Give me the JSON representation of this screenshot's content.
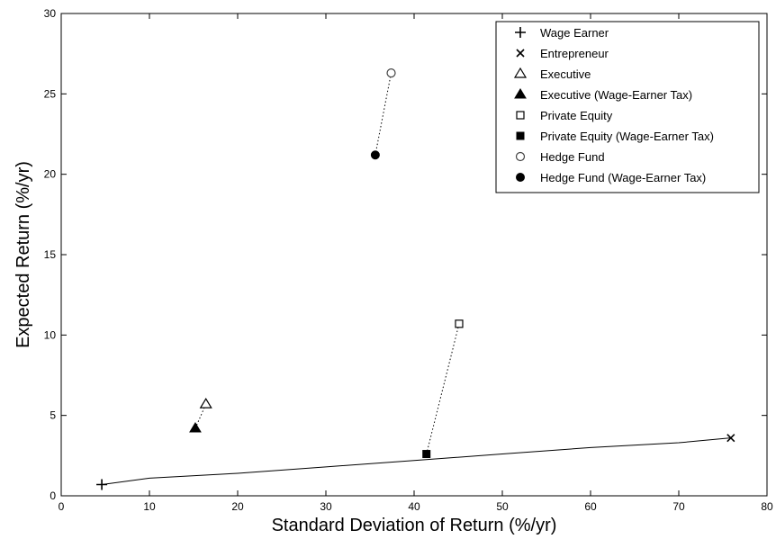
{
  "chart_data": {
    "type": "scatter",
    "title": "",
    "xlabel": "Standard Deviation of Return (%/yr)",
    "ylabel": "Expected Return (%/yr)",
    "xlim": [
      0,
      80
    ],
    "ylim": [
      0,
      30
    ],
    "xticks": [
      0,
      10,
      20,
      30,
      40,
      50,
      60,
      70,
      80
    ],
    "yticks": [
      0,
      5,
      10,
      15,
      20,
      25,
      30
    ],
    "grid": false,
    "legend_position": "top-right",
    "series": [
      {
        "name": "Wage Earner",
        "marker": "plus",
        "points": [
          [
            4.6,
            0.7
          ]
        ]
      },
      {
        "name": "Entrepreneur",
        "marker": "x",
        "points": [
          [
            75.9,
            3.6
          ]
        ]
      },
      {
        "name": "Executive",
        "marker": "triangle-open",
        "points": [
          [
            16.4,
            5.7
          ]
        ]
      },
      {
        "name": "Executive (Wage-Earner Tax)",
        "marker": "triangle-filled",
        "points": [
          [
            15.2,
            4.2
          ]
        ]
      },
      {
        "name": "Private Equity",
        "marker": "square-open",
        "points": [
          [
            45.1,
            10.7
          ]
        ]
      },
      {
        "name": "Private Equity (Wage-Earner Tax)",
        "marker": "square-filled",
        "points": [
          [
            41.4,
            2.6
          ]
        ]
      },
      {
        "name": "Hedge Fund",
        "marker": "circle-open",
        "points": [
          [
            37.4,
            26.3
          ]
        ]
      },
      {
        "name": "Hedge Fund (Wage-Earner Tax)",
        "marker": "circle-filled",
        "points": [
          [
            35.6,
            21.2
          ]
        ]
      }
    ],
    "lines": [
      {
        "style": "solid",
        "points": [
          [
            4.6,
            0.7
          ],
          [
            10,
            1.1
          ],
          [
            20,
            1.4
          ],
          [
            30,
            1.8
          ],
          [
            40,
            2.2
          ],
          [
            50,
            2.6
          ],
          [
            60,
            3.0
          ],
          [
            70,
            3.3
          ],
          [
            75.9,
            3.6
          ]
        ]
      },
      {
        "style": "dotted",
        "points": [
          [
            16.4,
            5.7
          ],
          [
            15.2,
            4.2
          ]
        ]
      },
      {
        "style": "dotted",
        "points": [
          [
            45.1,
            10.7
          ],
          [
            41.4,
            2.6
          ]
        ]
      },
      {
        "style": "dotted",
        "points": [
          [
            37.4,
            26.3
          ],
          [
            35.6,
            21.2
          ]
        ]
      }
    ]
  }
}
